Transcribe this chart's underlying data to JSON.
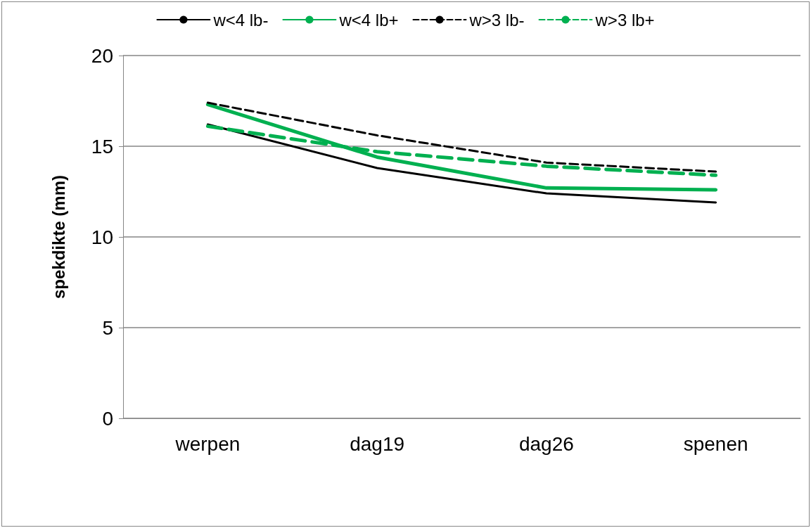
{
  "chart_data": {
    "type": "line",
    "ylabel": "spekdikte (mm)",
    "categories": [
      "werpen",
      "dag19",
      "dag26",
      "spenen"
    ],
    "series": [
      {
        "name": "w<4 lb-",
        "color": "#000000",
        "line_style": "solid",
        "values": [
          16.2,
          13.8,
          12.4,
          11.9
        ]
      },
      {
        "name": "w<4 lb+",
        "color": "#00b050",
        "line_style": "solid",
        "values": [
          17.3,
          14.4,
          12.7,
          12.6
        ]
      },
      {
        "name": "w>3 lb-",
        "color": "#000000",
        "line_style": "dashed",
        "values": [
          17.4,
          15.6,
          14.1,
          13.6
        ]
      },
      {
        "name": "w>3 lb+",
        "color": "#00b050",
        "line_style": "dashed",
        "values": [
          16.1,
          14.7,
          13.9,
          13.4
        ]
      }
    ],
    "ylim": [
      0,
      20
    ],
    "yticks": [
      0,
      5,
      10,
      15,
      20
    ],
    "grid": "y",
    "legend": "top",
    "marker": "none"
  }
}
